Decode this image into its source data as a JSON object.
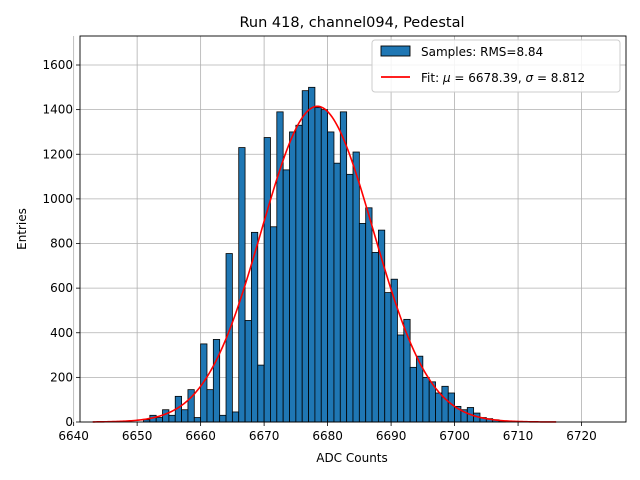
{
  "chart_data": {
    "type": "bar",
    "title": "Run 418, channel094, Pedestal",
    "xlabel": "ADC Counts",
    "ylabel": "Entries",
    "xlim": [
      6641,
      6727
    ],
    "ylim": [
      0,
      1730
    ],
    "xticks": [
      6640,
      6650,
      6660,
      6670,
      6680,
      6690,
      6700,
      6710,
      6720
    ],
    "yticks": [
      0,
      200,
      400,
      600,
      800,
      1000,
      1200,
      1400,
      1600
    ],
    "grid": true,
    "legend_placement": "top-right",
    "histogram": {
      "name": "Samples: RMS=8.84",
      "color": "#1f77b4",
      "edgecolor": "#000000",
      "bins": [
        {
          "x": 6651,
          "y": 10
        },
        {
          "x": 6652,
          "y": 30
        },
        {
          "x": 6653,
          "y": 20
        },
        {
          "x": 6654,
          "y": 55
        },
        {
          "x": 6655,
          "y": 30
        },
        {
          "x": 6656,
          "y": 115
        },
        {
          "x": 6657,
          "y": 55
        },
        {
          "x": 6658,
          "y": 145
        },
        {
          "x": 6659,
          "y": 20
        },
        {
          "x": 6660,
          "y": 350
        },
        {
          "x": 6661,
          "y": 145
        },
        {
          "x": 6662,
          "y": 370
        },
        {
          "x": 6663,
          "y": 30
        },
        {
          "x": 6664,
          "y": 755
        },
        {
          "x": 6665,
          "y": 45
        },
        {
          "x": 6666,
          "y": 1230
        },
        {
          "x": 6667,
          "y": 455
        },
        {
          "x": 6668,
          "y": 850
        },
        {
          "x": 6669,
          "y": 255
        },
        {
          "x": 6670,
          "y": 1275
        },
        {
          "x": 6671,
          "y": 875
        },
        {
          "x": 6672,
          "y": 1390
        },
        {
          "x": 6673,
          "y": 1130
        },
        {
          "x": 6674,
          "y": 1300
        },
        {
          "x": 6675,
          "y": 1330
        },
        {
          "x": 6676,
          "y": 1485
        },
        {
          "x": 6677,
          "y": 1500
        },
        {
          "x": 6678,
          "y": 1410
        },
        {
          "x": 6679,
          "y": 1400
        },
        {
          "x": 6680,
          "y": 1300
        },
        {
          "x": 6681,
          "y": 1160
        },
        {
          "x": 6682,
          "y": 1390
        },
        {
          "x": 6683,
          "y": 1110
        },
        {
          "x": 6684,
          "y": 1210
        },
        {
          "x": 6685,
          "y": 890
        },
        {
          "x": 6686,
          "y": 960
        },
        {
          "x": 6687,
          "y": 760
        },
        {
          "x": 6688,
          "y": 860
        },
        {
          "x": 6689,
          "y": 580
        },
        {
          "x": 6690,
          "y": 640
        },
        {
          "x": 6691,
          "y": 390
        },
        {
          "x": 6692,
          "y": 460
        },
        {
          "x": 6693,
          "y": 245
        },
        {
          "x": 6694,
          "y": 295
        },
        {
          "x": 6695,
          "y": 200
        },
        {
          "x": 6696,
          "y": 180
        },
        {
          "x": 6697,
          "y": 130
        },
        {
          "x": 6698,
          "y": 160
        },
        {
          "x": 6699,
          "y": 130
        },
        {
          "x": 6700,
          "y": 70
        },
        {
          "x": 6701,
          "y": 55
        },
        {
          "x": 6702,
          "y": 65
        },
        {
          "x": 6703,
          "y": 40
        },
        {
          "x": 6704,
          "y": 20
        },
        {
          "x": 6705,
          "y": 15
        },
        {
          "x": 6706,
          "y": 10
        },
        {
          "x": 6707,
          "y": 5
        }
      ]
    },
    "fit": {
      "name_prefix": "Fit: ",
      "mu_symbol": "μ",
      "mu_text": " = 6678.39, ",
      "sigma_symbol": "σ",
      "sigma_text": " = 8.812",
      "color": "#ff0000",
      "mu": 6678.39,
      "sigma": 8.812,
      "amplitude": 1415,
      "x_range": [
        6643,
        6716
      ]
    }
  }
}
